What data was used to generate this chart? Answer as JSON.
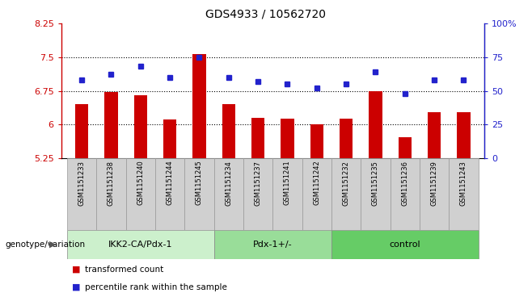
{
  "title": "GDS4933 / 10562720",
  "samples": [
    "GSM1151233",
    "GSM1151238",
    "GSM1151240",
    "GSM1151244",
    "GSM1151245",
    "GSM1151234",
    "GSM1151237",
    "GSM1151241",
    "GSM1151242",
    "GSM1151232",
    "GSM1151235",
    "GSM1151236",
    "GSM1151239",
    "GSM1151243"
  ],
  "bar_values": [
    6.45,
    6.72,
    6.65,
    6.12,
    7.56,
    6.45,
    6.15,
    6.13,
    6.01,
    6.13,
    6.75,
    5.72,
    6.27,
    6.27
  ],
  "dot_values": [
    58,
    62,
    68,
    60,
    75,
    60,
    57,
    55,
    52,
    55,
    64,
    48,
    58,
    58
  ],
  "bar_color": "#CC0000",
  "dot_color": "#2222CC",
  "ylim_left": [
    5.25,
    8.25
  ],
  "ylim_right": [
    0,
    100
  ],
  "yticks_left": [
    5.25,
    6.0,
    6.75,
    7.5,
    8.25
  ],
  "yticks_right": [
    0,
    25,
    50,
    75,
    100
  ],
  "ytick_labels_left": [
    "5.25",
    "6",
    "6.75",
    "7.5",
    "8.25"
  ],
  "ytick_labels_right": [
    "0",
    "25",
    "50",
    "75",
    "100%"
  ],
  "hlines": [
    6.0,
    6.75,
    7.5
  ],
  "groups": [
    {
      "label": "IKK2-CA/Pdx-1",
      "start": 0,
      "end": 4,
      "color": "#ccf0cc"
    },
    {
      "label": "Pdx-1+/-",
      "start": 5,
      "end": 8,
      "color": "#99dd99"
    },
    {
      "label": "control",
      "start": 9,
      "end": 13,
      "color": "#66cc66"
    }
  ],
  "group_label_prefix": "genotype/variation",
  "legend_items": [
    {
      "label": "transformed count",
      "color": "#CC0000"
    },
    {
      "label": "percentile rank within the sample",
      "color": "#2222CC"
    }
  ],
  "sample_box_color": "#d0d0d0",
  "plot_bg": "#ffffff",
  "bar_width": 0.45
}
